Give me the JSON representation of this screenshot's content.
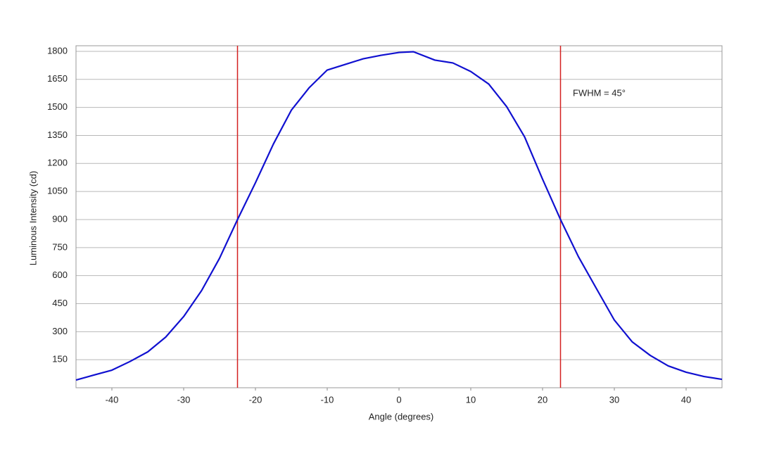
{
  "chart_data": {
    "type": "line",
    "x_label": "Angle (degrees)",
    "y_label": "Luminous Intensity (cd)",
    "x": [
      -45,
      -42.5,
      -40,
      -37.5,
      -35,
      -32.5,
      -30,
      -27.5,
      -25,
      -22.5,
      -20,
      -17.5,
      -15,
      -12.5,
      -10,
      -7.5,
      -5,
      -2.5,
      0,
      2,
      5,
      7.5,
      10,
      12.5,
      15,
      17.5,
      20,
      22.5,
      25,
      27.5,
      30,
      32.5,
      35,
      37.5,
      40,
      42.5,
      45
    ],
    "values": [
      41,
      68,
      94,
      140,
      192,
      271,
      381,
      520,
      693,
      900,
      1097,
      1304,
      1485,
      1606,
      1700,
      1730,
      1760,
      1779,
      1794,
      1798,
      1753,
      1738,
      1692,
      1625,
      1504,
      1342,
      1116,
      900,
      701,
      531,
      362,
      245,
      173,
      117,
      83,
      60,
      45
    ],
    "color": "#1010d0",
    "xlim": [
      -45,
      45
    ],
    "ylim": [
      0,
      1830
    ],
    "xticks": [
      -40,
      -30,
      -20,
      -10,
      0,
      10,
      20,
      30,
      40
    ],
    "yticks": [
      150,
      300,
      450,
      600,
      750,
      900,
      1050,
      1200,
      1350,
      1500,
      1650,
      1800
    ],
    "grid": true,
    "vlines": [
      {
        "x": -22.5,
        "color": "#d42020"
      },
      {
        "x": 22.5,
        "color": "#d42020"
      }
    ],
    "annotation": "FWHM = 45°"
  }
}
